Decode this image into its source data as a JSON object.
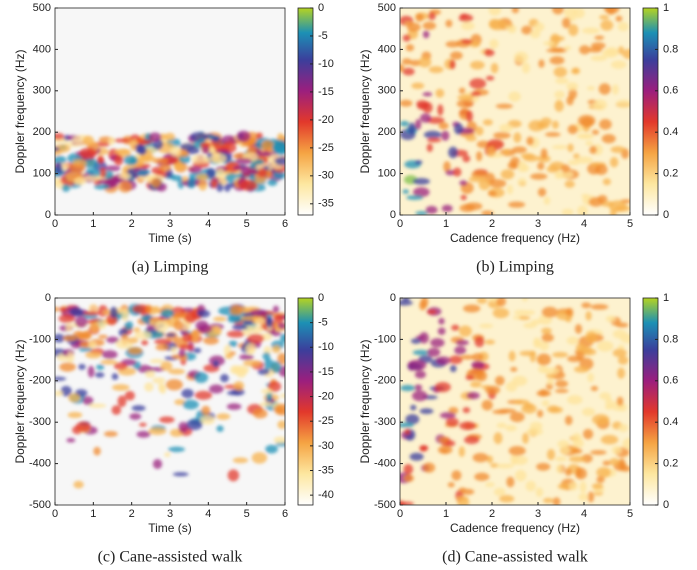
{
  "chart_data": [
    {
      "type": "heatmap",
      "caption": "(a) Limping",
      "xlabel": "Time (s)",
      "ylabel": "Doppler frequency (Hz)",
      "xlim": [
        0,
        6
      ],
      "xticks": [
        0,
        1,
        2,
        3,
        4,
        5,
        6
      ],
      "ylim": [
        0,
        500
      ],
      "yticks": [
        0,
        100,
        200,
        300,
        400,
        500
      ],
      "colorbar": {
        "lim": [
          -37,
          0
        ],
        "ticks": [
          0,
          -5,
          -10,
          -15,
          -20,
          -25,
          -30,
          -35
        ]
      }
    },
    {
      "type": "heatmap",
      "caption": "(b) Limping",
      "xlabel": "Cadence frequency (Hz)",
      "ylabel": "Doppler frequency (Hz)",
      "xlim": [
        0,
        5
      ],
      "xticks": [
        0,
        1,
        2,
        3,
        4,
        5
      ],
      "ylim": [
        0,
        500
      ],
      "yticks": [
        0,
        100,
        200,
        300,
        400,
        500
      ],
      "colorbar": {
        "lim": [
          0,
          1
        ],
        "ticks": [
          0,
          0.2,
          0.4,
          0.6,
          0.8,
          1
        ]
      }
    },
    {
      "type": "heatmap",
      "caption": "(c) Cane-assisted walk",
      "xlabel": "Time (s)",
      "ylabel": "Doppler frequency (Hz)",
      "xlim": [
        0,
        6
      ],
      "xticks": [
        0,
        1,
        2,
        3,
        4,
        5,
        6
      ],
      "ylim": [
        -500,
        0
      ],
      "yticks": [
        -500,
        -400,
        -300,
        -200,
        -100,
        0
      ],
      "colorbar": {
        "lim": [
          -42,
          0
        ],
        "ticks": [
          0,
          -5,
          -10,
          -15,
          -20,
          -25,
          -30,
          -35,
          -40
        ]
      }
    },
    {
      "type": "heatmap",
      "caption": "(d) Cane-assisted walk",
      "xlabel": "Cadence frequency (Hz)",
      "ylabel": "Doppler frequency (Hz)",
      "xlim": [
        0,
        5
      ],
      "xticks": [
        0,
        1,
        2,
        3,
        4,
        5
      ],
      "ylim": [
        -500,
        0
      ],
      "yticks": [
        -500,
        -400,
        -300,
        -200,
        -100,
        0
      ],
      "colorbar": {
        "lim": [
          0,
          1
        ],
        "ticks": [
          0,
          0.2,
          0.4,
          0.6,
          0.8,
          1
        ]
      }
    }
  ]
}
